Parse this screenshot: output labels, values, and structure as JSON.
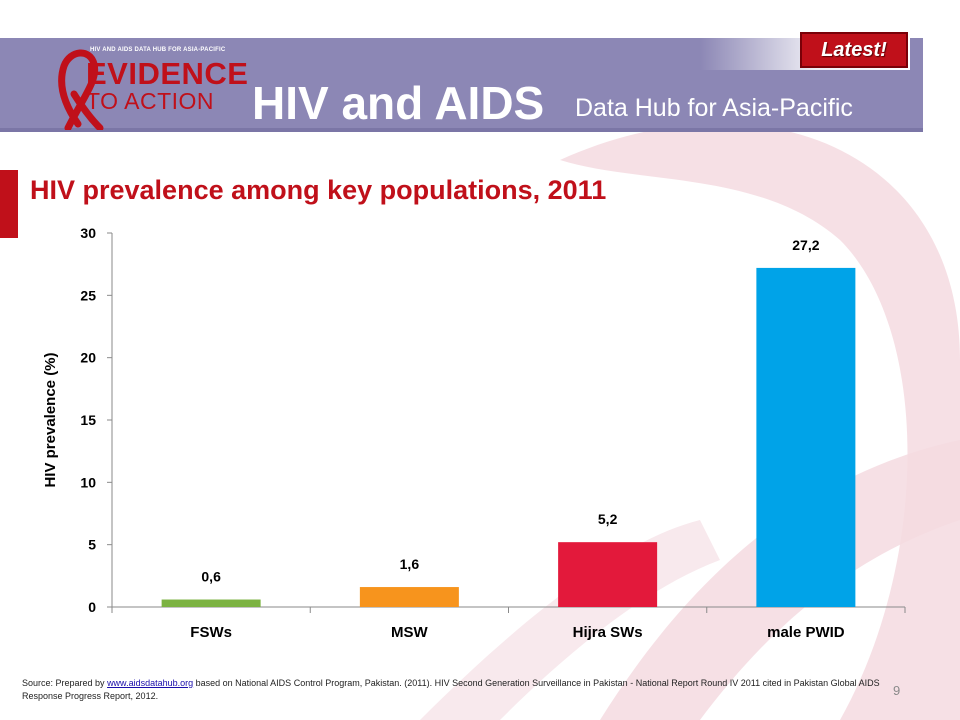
{
  "header": {
    "logo_tagline": "HIV AND AIDS DATA HUB FOR ASIA-PACIFIC",
    "logo_line1": "EVIDENCE",
    "logo_line2": "TO ACTION",
    "title_main": "HIV and AIDS",
    "title_sub": "Data Hub for Asia-Pacific",
    "badge": "Latest!"
  },
  "colors": {
    "banner": "#8c87b5",
    "accent_red": "#c0101a",
    "ribbon_light": "#f3d9df"
  },
  "slide": {
    "heading": "HIV prevalence among key populations, 2011",
    "source_prefix": "Source: Prepared by ",
    "source_link": "www.aidsdatahub.org",
    "source_rest": " based on National AIDS Control Program, Pakistan. (2011). HIV Second Generation Surveillance in Pakistan - National Report Round IV 2011 cited in Pakistan Global AIDS Response Progress Report, 2012.",
    "page_number": "9"
  },
  "chart_data": {
    "type": "bar",
    "title": "",
    "xlabel": "",
    "ylabel": "HIV prevalence (%)",
    "ylim": [
      0,
      30
    ],
    "yticks": [
      0,
      5,
      10,
      15,
      20,
      25,
      30
    ],
    "categories": [
      "FSWs",
      "MSW",
      "Hijra SWs",
      "male PWID"
    ],
    "values": [
      0.6,
      1.6,
      5.2,
      27.2
    ],
    "data_labels": [
      "0,6",
      "1,6",
      "5,2",
      "27,2"
    ],
    "bar_colors": [
      "#7cb342",
      "#f7941d",
      "#e3193b",
      "#00a3e8"
    ],
    "grid": false,
    "legend": "none"
  }
}
